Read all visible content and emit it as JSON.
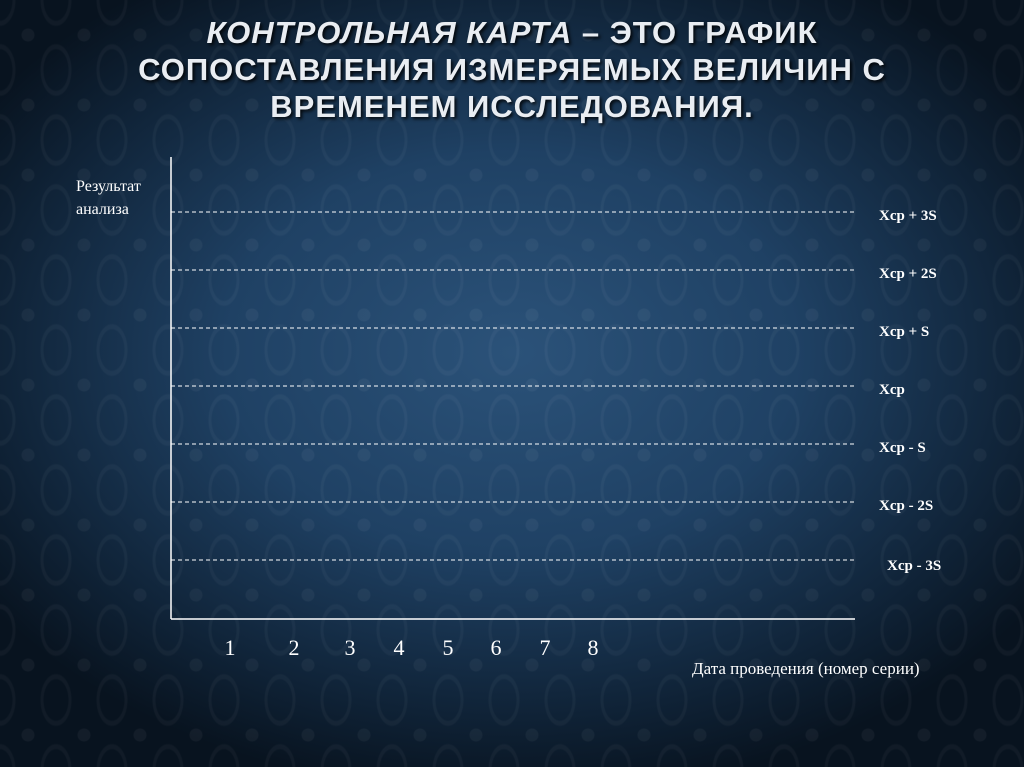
{
  "title": {
    "italic_part": "КОНТРОЛЬНАЯ КАРТА",
    "rest_line1": " – ЭТО ГРАФИК",
    "line2": "СОПОСТАВЛЕНИЯ ИЗМЕРЯЕМЫХ ВЕЛИЧИН С",
    "line3": "ВРЕМЕНЕМ ИССЛЕДОВАНИЯ."
  },
  "chart_data": {
    "type": "line",
    "ylabel_line1": "Результат",
    "ylabel_line2": "анализа",
    "xlabel": "Дата проведения (номер серии)",
    "x_ticks": [
      "1",
      "2",
      "3",
      "4",
      "5",
      "6",
      "7",
      "8"
    ],
    "control_lines": [
      {
        "label": "Xcp + 3S",
        "offset_s": 3
      },
      {
        "label": "Xcp + 2S",
        "offset_s": 2
      },
      {
        "label": "Xcp + S",
        "offset_s": 1
      },
      {
        "label": "Xcp",
        "offset_s": 0
      },
      {
        "label": "Xcp - S",
        "offset_s": -1
      },
      {
        "label": "Xcp - 2S",
        "offset_s": -2
      },
      {
        "label": "Xcp - 3S",
        "offset_s": -3
      }
    ],
    "line_style": "dashed",
    "grid": false,
    "colors": {
      "lines": "#ffffff",
      "text": "#ffffff",
      "background": "#1f4164"
    }
  }
}
